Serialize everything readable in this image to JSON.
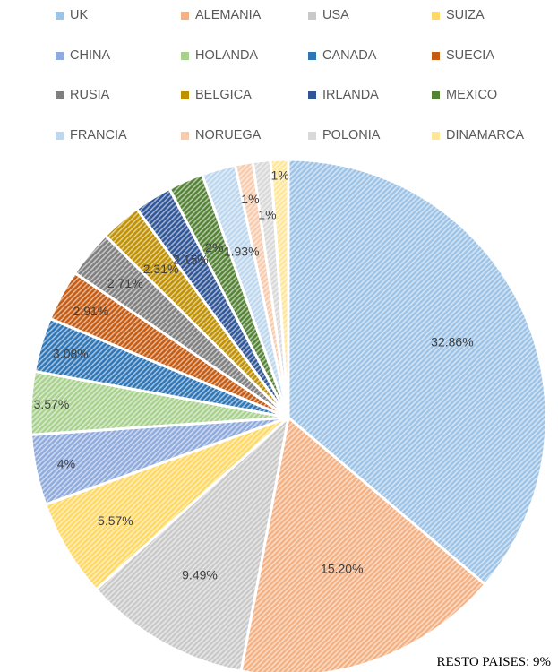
{
  "chart_data": {
    "type": "pie",
    "title": "",
    "legend_position": "top",
    "categories": [
      "UK",
      "ALEMANIA",
      "USA",
      "SUIZA",
      "CHINA",
      "HOLANDA",
      "CANADA",
      "SUECIA",
      "RUSIA",
      "BELGICA",
      "IRLANDA",
      "MEXICO",
      "FRANCIA",
      "NORUEGA",
      "POLONIA",
      "DINAMARCA"
    ],
    "values": [
      32.86,
      15.2,
      9.49,
      5.57,
      4,
      3.57,
      3.08,
      2.91,
      2.71,
      2.31,
      2.15,
      2,
      1.93,
      1,
      1,
      1
    ],
    "value_labels": [
      "32.86%",
      "15.20%",
      "9.49%",
      "5.57%",
      "4%",
      "3.57%",
      "3.08%",
      "2.91%",
      "2.71%",
      "2.31%",
      "2.15%",
      "2%",
      "1.93%",
      "1%",
      "1%",
      "1%"
    ],
    "colors": [
      "#9DC3E6",
      "#F4B183",
      "#C9C9C9",
      "#FFD966",
      "#8FAADC",
      "#A9D18E",
      "#2E75B6",
      "#C55A11",
      "#7F7F7F",
      "#BF9000",
      "#2F5597",
      "#548235",
      "#BDD7EE",
      "#F8CBAD",
      "#D9D9D9",
      "#FFE699"
    ],
    "annotation": "RESTO PAISES: 9%"
  }
}
